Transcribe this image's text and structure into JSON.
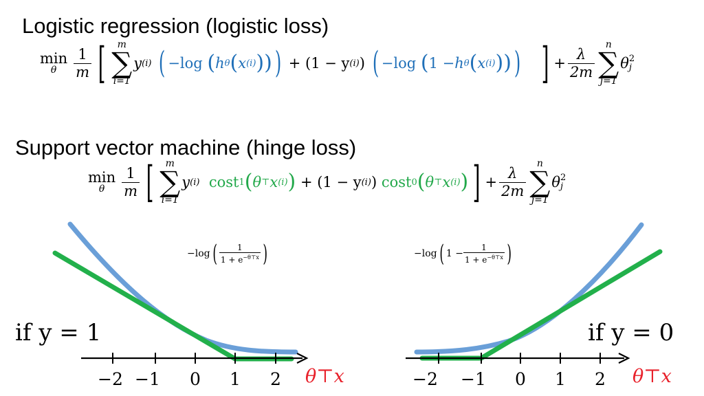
{
  "headings": {
    "logistic": "Logistic regression (logistic loss)",
    "svm": "Support vector machine (hinge loss)"
  },
  "equations": {
    "min": "min",
    "theta": "θ",
    "one": "1",
    "m": "m",
    "sum_from": "i=1",
    "sum_to": "m",
    "reg_from": "j=1",
    "reg_to": "n",
    "lambda": "λ",
    "two_m": "2m",
    "theta_j": "θ",
    "j": "j",
    "two": "2",
    "y": "y",
    "i_sup": "(i)",
    "plus": "+",
    "one_minus_y": "(1 − y",
    "close_paren": ")",
    "neg_log": "−log",
    "h_theta": "h",
    "x": "x",
    "one_minus": "1 − ",
    "cost1": "cost",
    "cost1_sub": "1",
    "cost0": "cost",
    "cost0_sub": "0",
    "theta_T": "θ",
    "T": "⊤"
  },
  "curve_labels": {
    "left_prefix": "−log",
    "left_num": "1",
    "left_den": "1 + e",
    "left_exp": "−θ⊤x",
    "right_prefix": "−log",
    "right_one_minus": "1 − ",
    "right_num": "1",
    "right_den": "1 + e",
    "right_exp": "−θ⊤x"
  },
  "cases": {
    "left": "if  y = 1",
    "right": "if  y = 0"
  },
  "axes": {
    "left_ticks": [
      "−2",
      "−1",
      "0",
      "1",
      "2"
    ],
    "right_ticks": [
      "−2",
      "−1",
      "0",
      "1",
      "2"
    ],
    "variable": "θ⊤x"
  },
  "colors": {
    "logistic_curve": "#6a9fd8",
    "hinge_curve": "#22b04b",
    "axis_var": "#e8202a",
    "blue_text": "#1f6fb8",
    "green_text": "#22a84a"
  }
}
